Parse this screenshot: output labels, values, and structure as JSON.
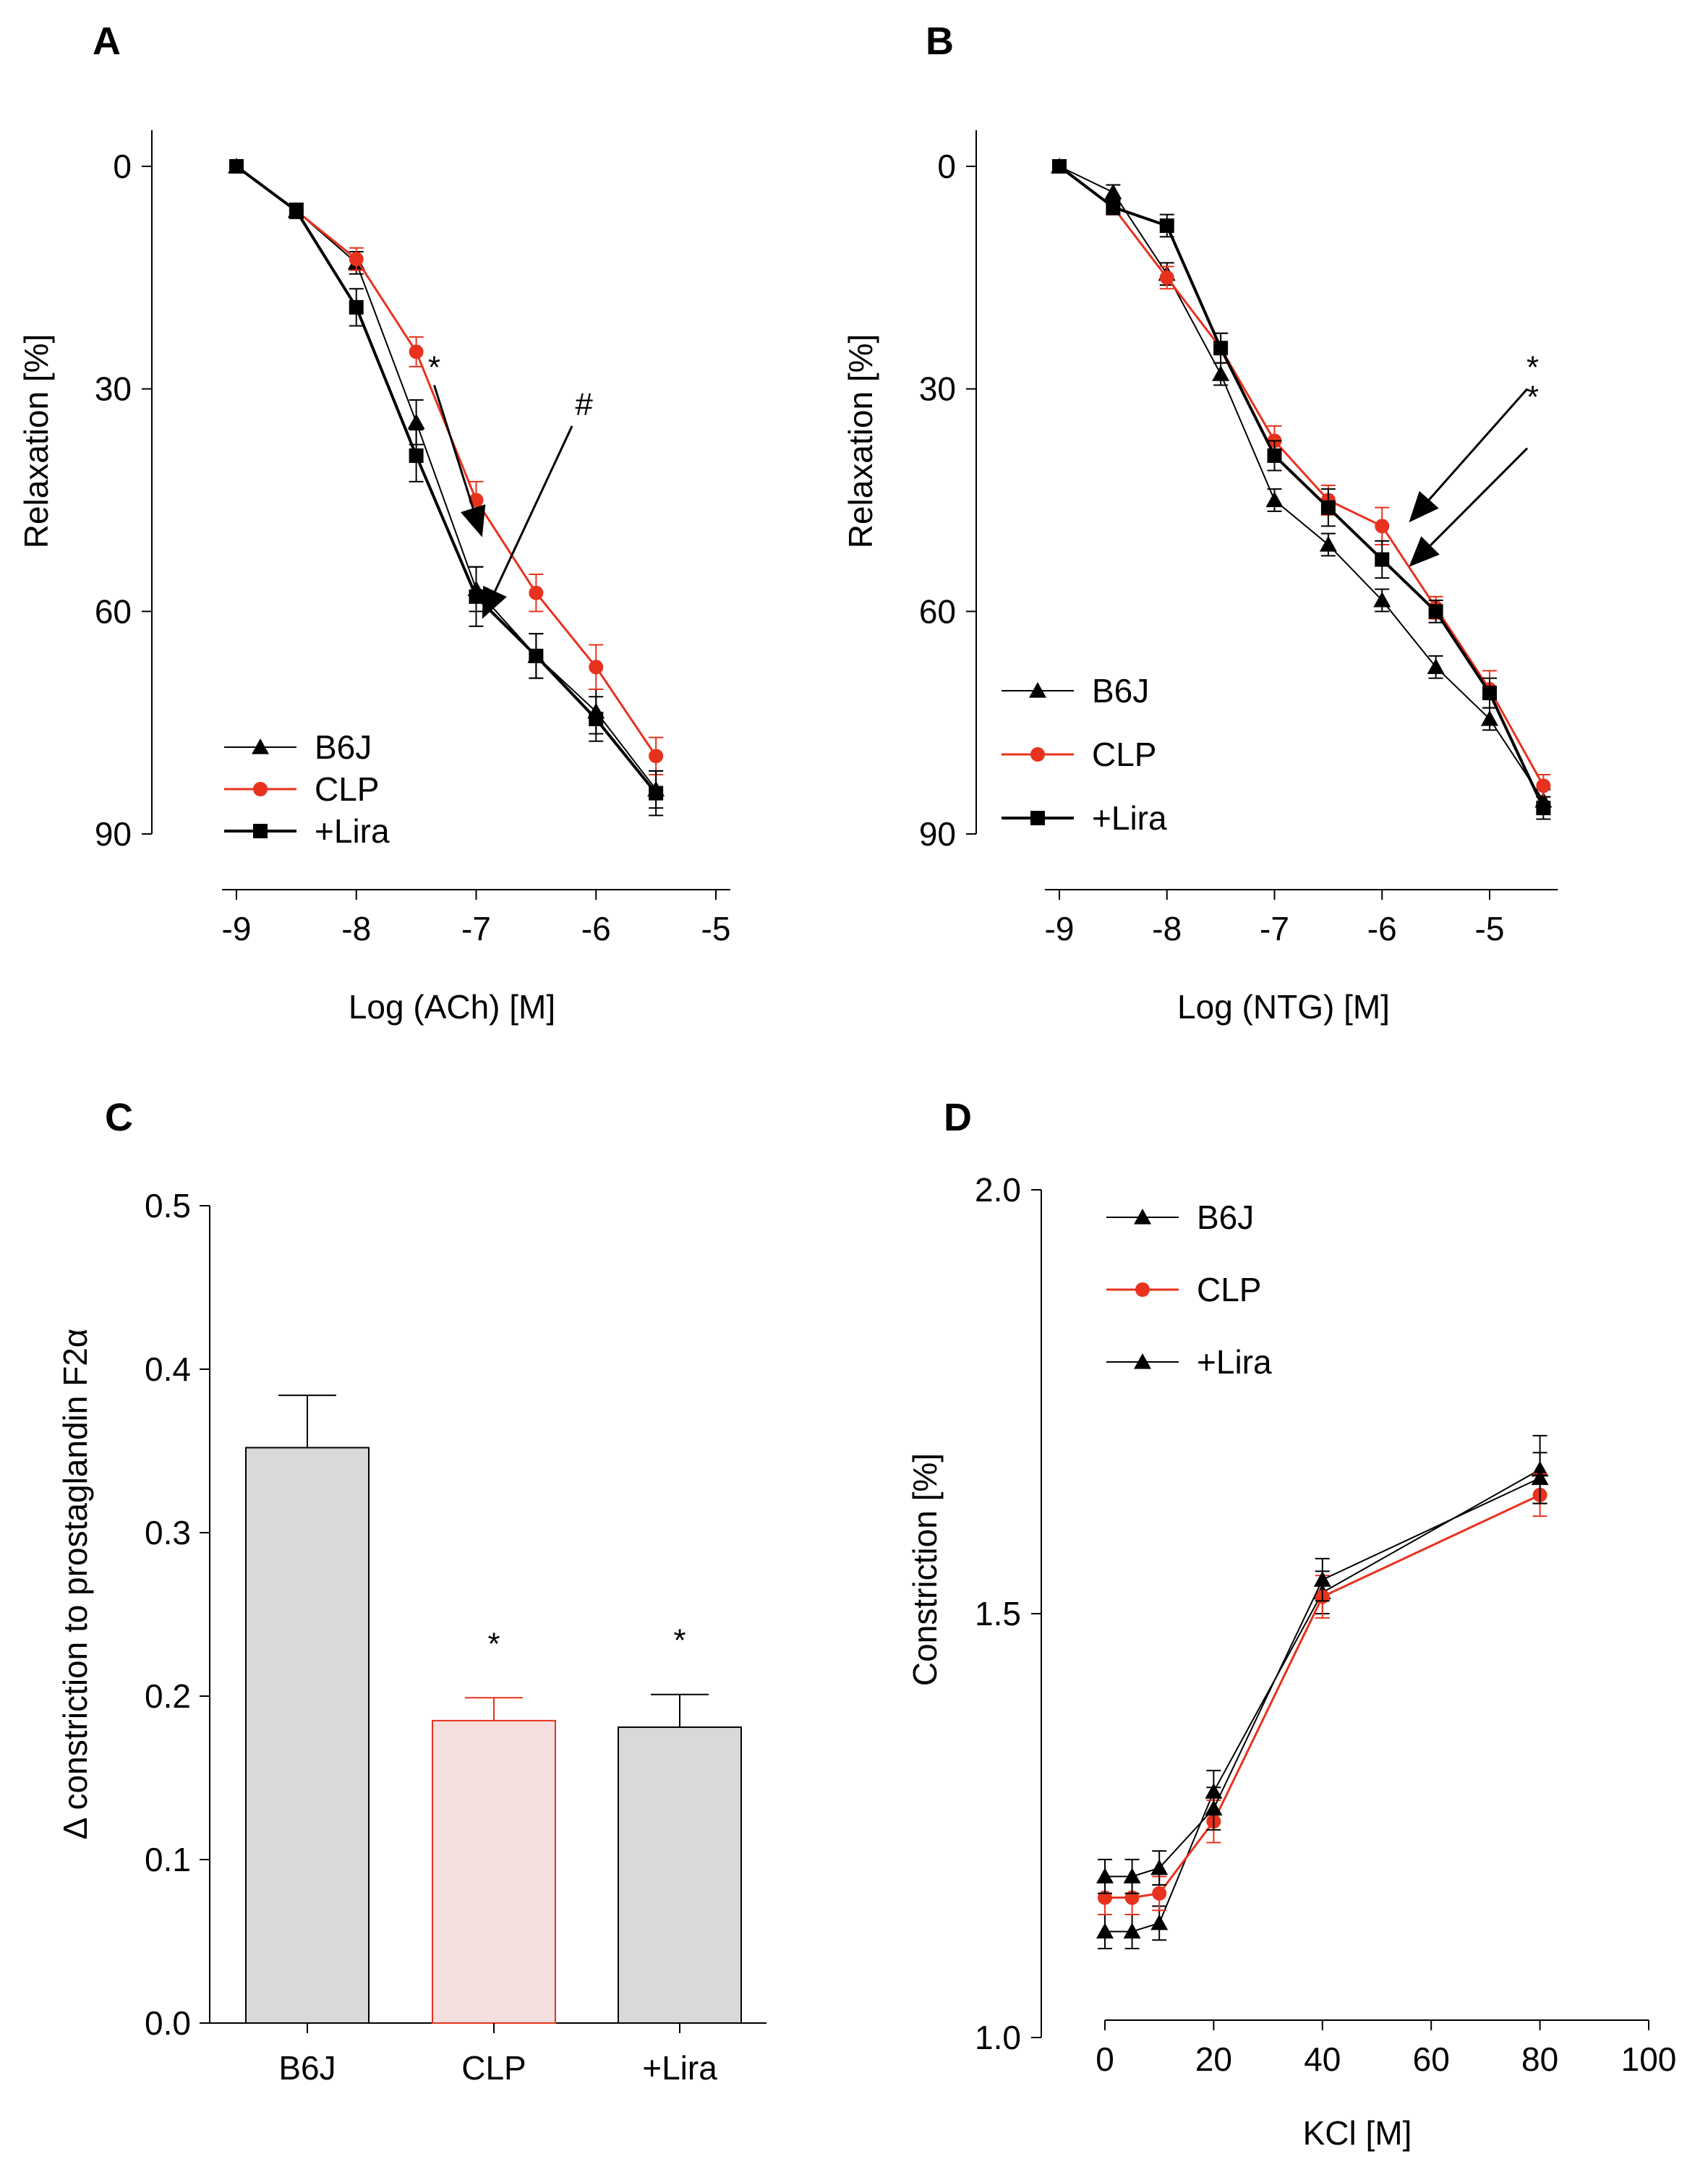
{
  "colors": {
    "black": "#000000",
    "red": "#e8321e",
    "bar_grey": "#d9d9d9",
    "bar_pink": "#f5e0df"
  },
  "chart_data": [
    {
      "id": "A",
      "type": "line",
      "panel_label": "A",
      "xlabel": "Log (ACh) [M]",
      "ylabel": "Relaxation [%]",
      "xlim": [
        -9,
        -5
      ],
      "ylim": [
        0,
        90
      ],
      "y_inverted": true,
      "x_ticks": [
        -9,
        -8,
        -7,
        -6,
        -5
      ],
      "x_tick_labels": [
        "-9",
        "-8",
        "-7",
        "-6",
        "-5"
      ],
      "y_ticks": [
        0,
        30,
        60,
        90
      ],
      "y_tick_labels": [
        "0",
        "30",
        "60",
        "90"
      ],
      "x": [
        -9,
        -8.5,
        -8,
        -7.5,
        -7,
        -6.5,
        -6,
        -5.5
      ],
      "series": [
        {
          "name": "B6J",
          "marker": "triangle",
          "color": "#000000",
          "line_width": 2,
          "values": [
            0,
            6,
            13,
            34.5,
            57,
            66,
            73.5,
            84
          ],
          "errors": [
            0.5,
            1,
            1.5,
            3,
            3,
            3,
            3,
            2.5
          ]
        },
        {
          "name": "CLP",
          "marker": "circle",
          "color": "#e8321e",
          "line_width": 3,
          "values": [
            0,
            6,
            12.5,
            25,
            45,
            57.5,
            67.5,
            79.5
          ],
          "errors": [
            0.5,
            1,
            1.5,
            2,
            2.5,
            2.5,
            3,
            2.5
          ]
        },
        {
          "name": "+Lira",
          "marker": "square",
          "color": "#000000",
          "line_width": 4,
          "values": [
            0,
            6,
            19,
            39,
            58,
            66,
            74.5,
            84.5
          ],
          "errors": [
            0.5,
            1,
            2.5,
            3.5,
            4,
            3,
            3,
            3
          ]
        }
      ],
      "legend": {
        "position": "bottom-left",
        "entries": [
          "B6J",
          "CLP",
          "+Lira"
        ]
      },
      "annotations": [
        {
          "text": "*",
          "x": -7.35,
          "y": 28.5,
          "arrow_from": [
            -7.35,
            29.5
          ],
          "arrow_to": [
            -6.95,
            50
          ]
        },
        {
          "text": "#",
          "x": -6.1,
          "y": 33.5,
          "arrow_from": [
            -6.2,
            35
          ],
          "arrow_to": [
            -6.95,
            61
          ]
        }
      ]
    },
    {
      "id": "B",
      "type": "line",
      "panel_label": "B",
      "xlabel": "Log (NTG) [M]",
      "ylabel": "Relaxation [%]",
      "xlim": [
        -9,
        -4.5
      ],
      "ylim": [
        0,
        90
      ],
      "y_inverted": true,
      "x_ticks": [
        -9,
        -8,
        -7,
        -6,
        -5
      ],
      "x_tick_labels": [
        "-9",
        "-8",
        "-7",
        "-6",
        "-5"
      ],
      "y_ticks": [
        0,
        30,
        60,
        90
      ],
      "y_tick_labels": [
        "0",
        "30",
        "60",
        "90"
      ],
      "x": [
        -9,
        -8.5,
        -8,
        -7.5,
        -7,
        -6.5,
        -6,
        -5.5,
        -5,
        -4.5
      ],
      "series": [
        {
          "name": "B6J",
          "marker": "triangle",
          "color": "#000000",
          "line_width": 2,
          "values": [
            0,
            3.5,
            14.5,
            28,
            45,
            51,
            58.5,
            67.5,
            74.5,
            85.5
          ],
          "errors": [
            0.5,
            1,
            1.5,
            1.5,
            1.5,
            1.5,
            1.5,
            1.5,
            1.5,
            1.5
          ]
        },
        {
          "name": "CLP",
          "marker": "circle",
          "color": "#e8321e",
          "line_width": 3,
          "values": [
            0,
            5.5,
            15,
            24.5,
            37,
            45,
            48.5,
            59.5,
            70.5,
            83.5
          ],
          "errors": [
            0.5,
            1,
            1.5,
            2,
            2,
            2,
            2.5,
            1.5,
            2.5,
            1.5
          ]
        },
        {
          "name": "+Lira",
          "marker": "square",
          "color": "#000000",
          "line_width": 4,
          "values": [
            0,
            5.5,
            8,
            24.5,
            39,
            46,
            53,
            60,
            71,
            86.5
          ],
          "errors": [
            0.5,
            1,
            1.5,
            2,
            2,
            2.5,
            2.5,
            1.5,
            2,
            1.5
          ]
        }
      ],
      "legend": {
        "position": "bottom-left",
        "entries": [
          "B6J",
          "CLP",
          "+Lira"
        ]
      },
      "annotations": [
        {
          "text": "*",
          "x": -4.6,
          "y": 28.5,
          "arrow_from": [
            -4.65,
            30
          ],
          "arrow_to": [
            -5.75,
            48
          ]
        },
        {
          "text": "*",
          "x": -4.6,
          "y": 32.5,
          "arrow_from": [
            -4.65,
            38
          ],
          "arrow_to": [
            -5.75,
            54
          ]
        }
      ]
    },
    {
      "id": "C",
      "type": "bar",
      "panel_label": "C",
      "xlabel": "",
      "ylabel": "Δ constriction to prostaglandin F2α",
      "ylim": [
        0,
        0.5
      ],
      "y_ticks": [
        0,
        0.1,
        0.2,
        0.3,
        0.4,
        0.5
      ],
      "y_tick_labels": [
        "0.0",
        "0.1",
        "0.2",
        "0.3",
        "0.4",
        "0.5"
      ],
      "categories": [
        "B6J",
        "CLP",
        "+Lira"
      ],
      "values": [
        0.352,
        0.185,
        0.181
      ],
      "errors": [
        0.032,
        0.014,
        0.02
      ],
      "fill_colors": [
        "#d9d9d9",
        "#f5e0df",
        "#d9d9d9"
      ],
      "edge_colors": [
        "#000000",
        "#e8321e",
        "#000000"
      ],
      "significance": [
        "",
        "*",
        "*"
      ]
    },
    {
      "id": "D",
      "type": "line",
      "panel_label": "D",
      "xlabel": "KCl [M]",
      "ylabel": "Constriction [%]",
      "xlim": [
        0,
        100
      ],
      "ylim": [
        1.0,
        2.0
      ],
      "x_ticks": [
        0,
        20,
        40,
        60,
        80,
        100
      ],
      "x_tick_labels": [
        "0",
        "20",
        "40",
        "60",
        "80",
        "100"
      ],
      "y_ticks": [
        1.0,
        1.5,
        2.0
      ],
      "y_tick_labels": [
        "1.0",
        "1.5",
        "2.0"
      ],
      "x": [
        0,
        5,
        10,
        20,
        40,
        80
      ],
      "series": [
        {
          "name": "B6J",
          "marker": "triangle",
          "color": "#000000",
          "line_width": 2,
          "values": [
            1.125,
            1.125,
            1.135,
            1.29,
            1.525,
            1.67
          ],
          "errors": [
            0.02,
            0.02,
            0.02,
            0.025,
            0.025,
            0.04
          ]
        },
        {
          "name": "CLP",
          "marker": "circle",
          "color": "#e8321e",
          "line_width": 3,
          "values": [
            1.165,
            1.165,
            1.17,
            1.255,
            1.52,
            1.64
          ],
          "errors": [
            0.02,
            0.02,
            0.02,
            0.025,
            0.025,
            0.025
          ]
        },
        {
          "name": "+Lira",
          "marker": "triangle",
          "color": "#000000",
          "line_width": 2,
          "values": [
            1.19,
            1.19,
            1.2,
            1.27,
            1.54,
            1.66
          ],
          "errors": [
            0.02,
            0.02,
            0.02,
            0.025,
            0.025,
            0.03
          ]
        }
      ],
      "legend": {
        "position": "top-left",
        "entries": [
          "B6J",
          "CLP",
          "+Lira"
        ]
      }
    }
  ]
}
